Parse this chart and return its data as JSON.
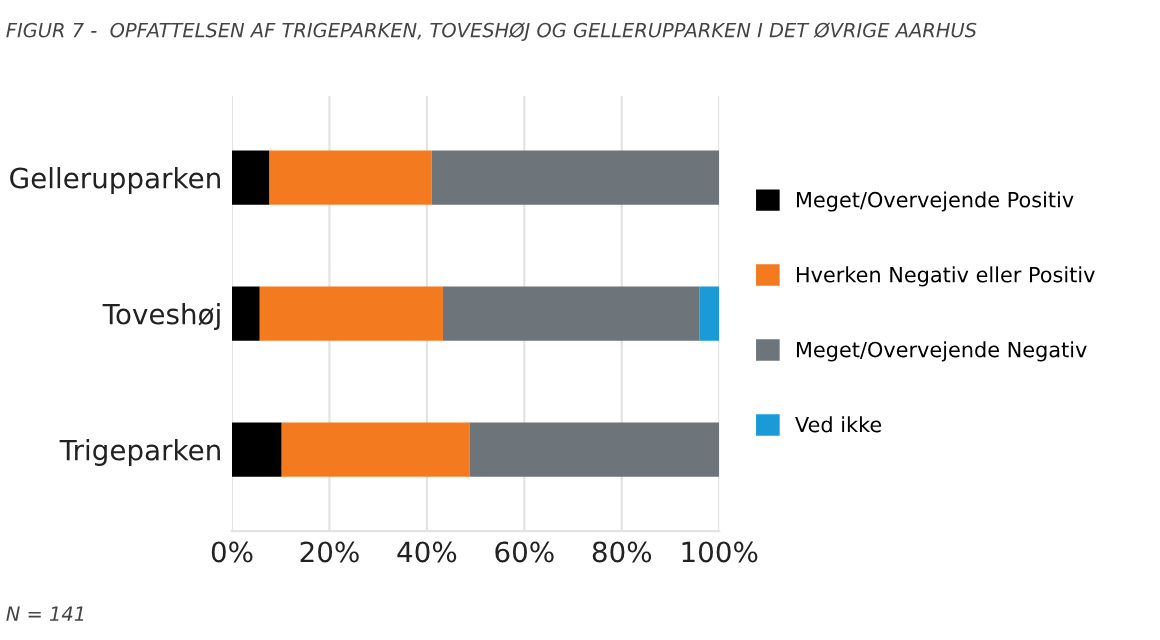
{
  "chart_data": {
    "type": "bar",
    "orientation": "horizontal",
    "stacked": true,
    "title": "FIGUR 7 -  OPFATTELSEN AF TRIGEPARKEN, TOVESHØJ OG GELLERUPPARKEN I DET ØVRIGE AARHUS",
    "categories": [
      "Gellerupparken",
      "Toveshøj",
      "Trigeparken"
    ],
    "series": [
      {
        "name": "Meget/Overvejende Positiv",
        "color": "#000000",
        "values": [
          7.7,
          5.7,
          10.2
        ]
      },
      {
        "name": "Hverken Negativ eller Positiv",
        "color": "#f47a20",
        "values": [
          33.3,
          37.6,
          38.6
        ]
      },
      {
        "name": "Meget/Overvejende Negativ",
        "color": "#6d757b",
        "values": [
          59.0,
          52.7,
          51.2
        ]
      },
      {
        "name": "Ved ikke",
        "color": "#1a9ad6",
        "values": [
          0,
          4.0,
          0
        ]
      }
    ],
    "xlim": [
      0,
      100
    ],
    "xticks": [
      {
        "value": 0,
        "label": "0%"
      },
      {
        "value": 20,
        "label": "20%"
      },
      {
        "value": 40,
        "label": "40%"
      },
      {
        "value": 60,
        "label": "60%"
      },
      {
        "value": 80,
        "label": "80%"
      },
      {
        "value": 100,
        "label": "100%"
      }
    ],
    "grid": "x",
    "legend": "right",
    "annotations": [
      "N = 141"
    ]
  }
}
